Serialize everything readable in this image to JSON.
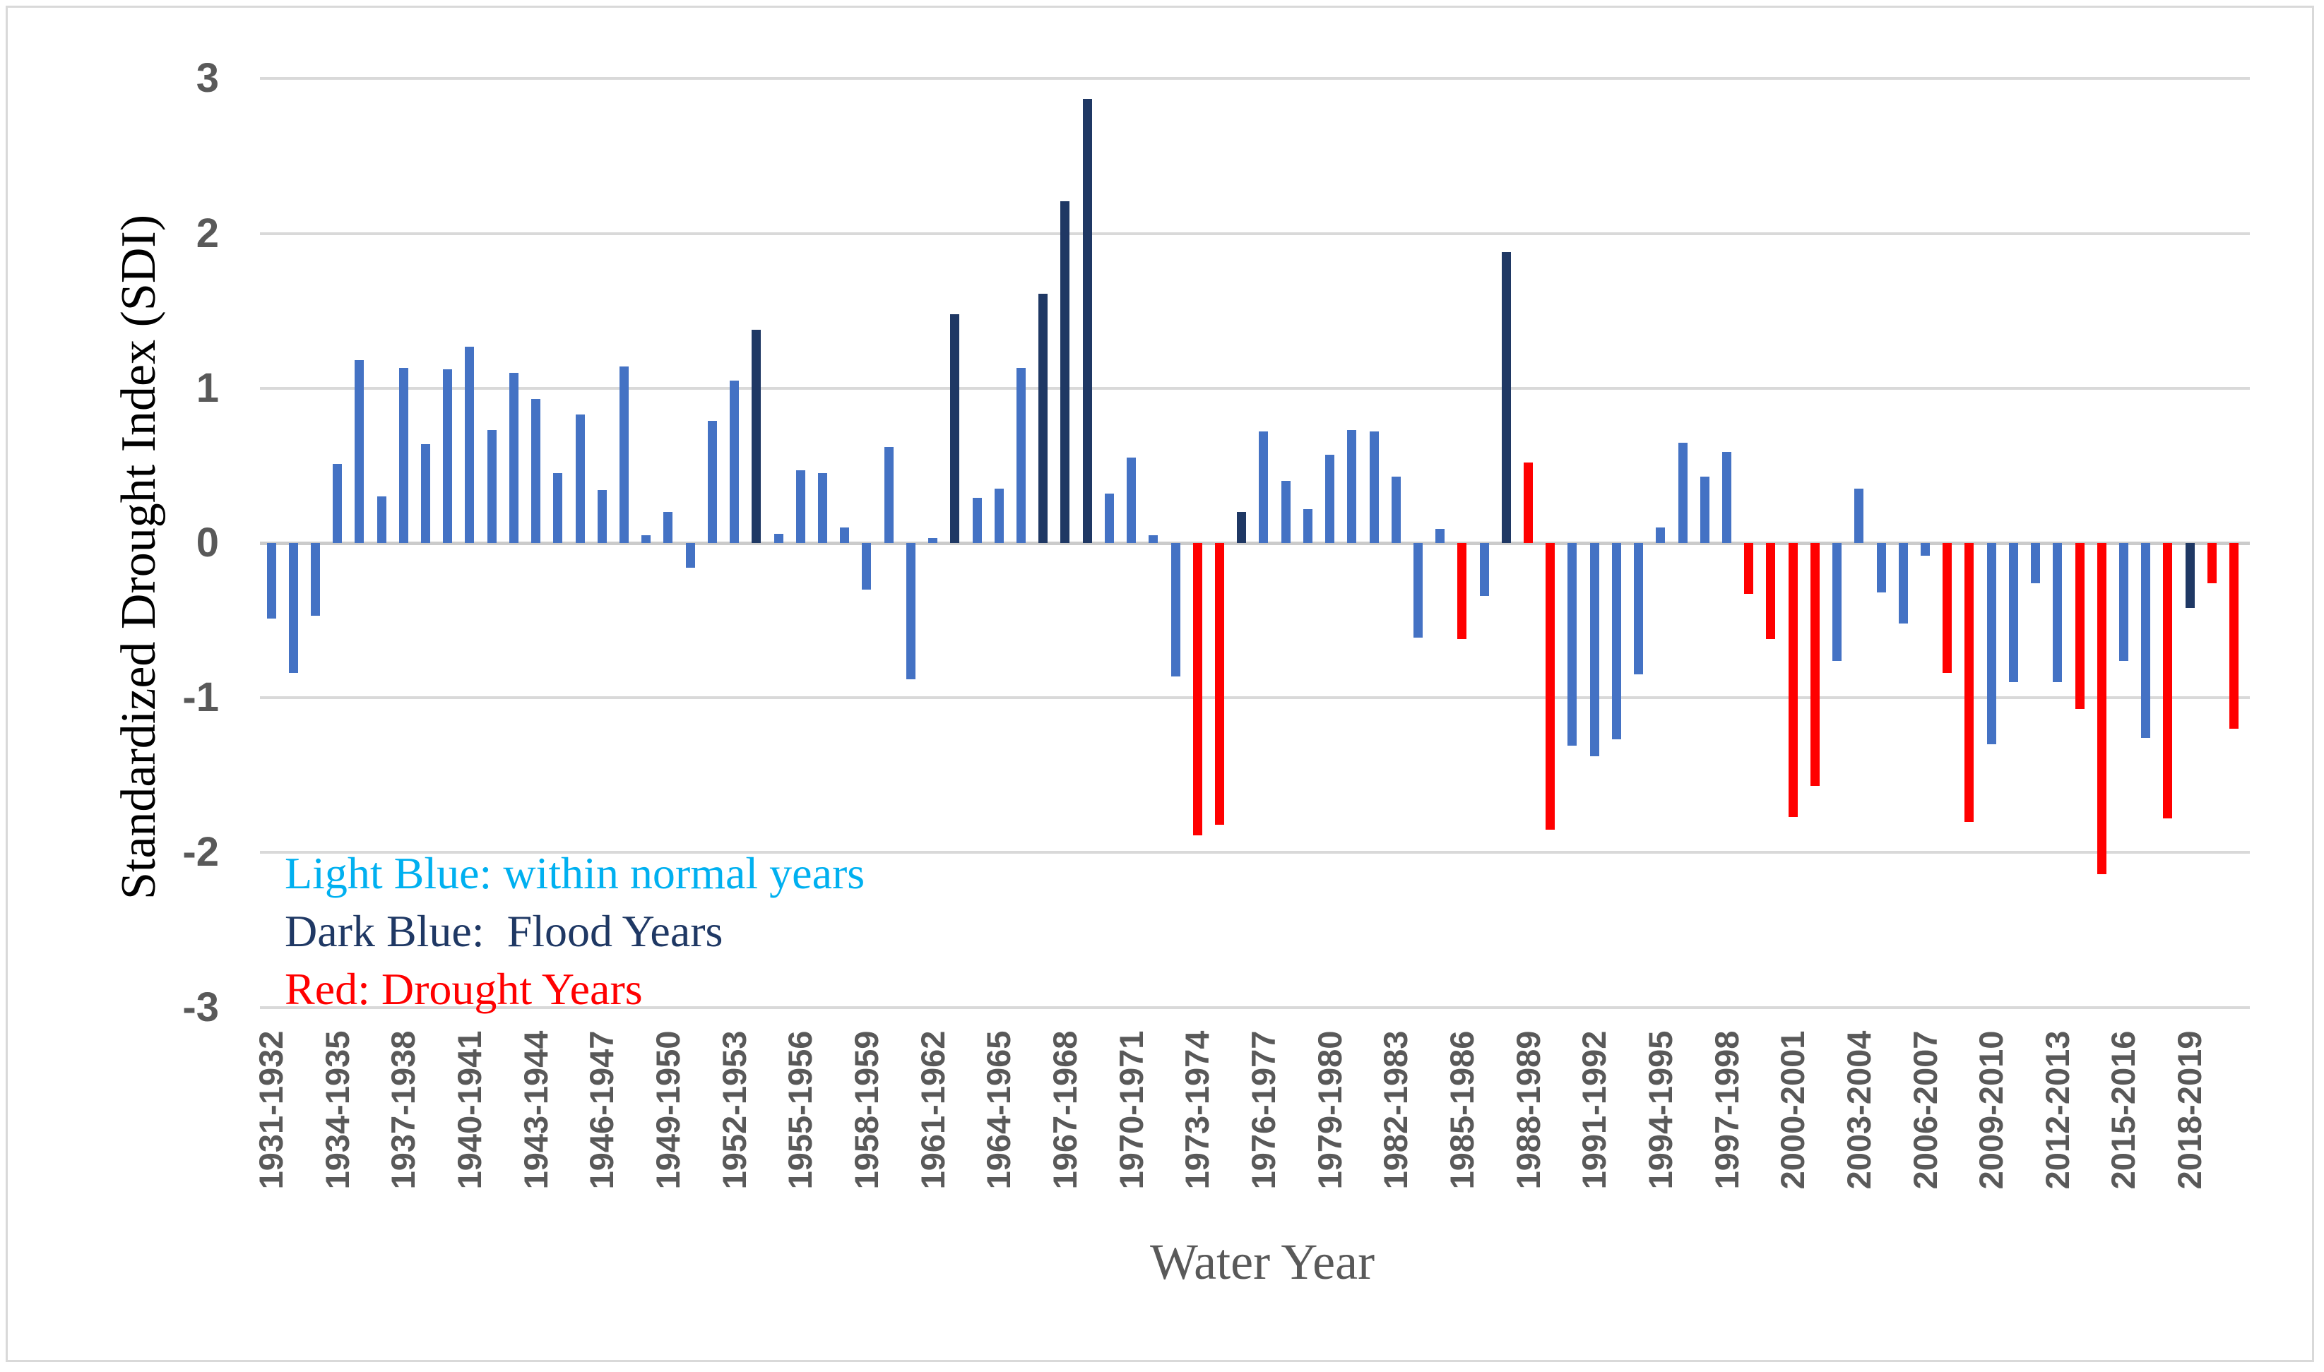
{
  "chart_data": {
    "type": "bar",
    "title": "",
    "xlabel": "Water Year",
    "ylabel": "Standardized Drought Index (SDI)",
    "ylim": [
      -3,
      3
    ],
    "ytick_interval": 1,
    "ytick_labels": [
      "3",
      "2",
      "1",
      "0",
      "-1",
      "-2",
      "-3"
    ],
    "x_tick_every": 3,
    "grid": "horizontal",
    "legend_position": "inside-bottom-left",
    "categories": [
      "1931-1932",
      "1932-1933",
      "1933-1934",
      "1934-1935",
      "1935-1936",
      "1936-1937",
      "1937-1938",
      "1938-1939",
      "1939-1940",
      "1940-1941",
      "1941-1942",
      "1942-1943",
      "1943-1944",
      "1944-1945",
      "1945-1946",
      "1946-1947",
      "1947-1948",
      "1948-1949",
      "1949-1950",
      "1950-1951",
      "1951-1952",
      "1952-1953",
      "1953-1954",
      "1954-1955",
      "1955-1956",
      "1956-1957",
      "1957-1958",
      "1958-1959",
      "1959-1960",
      "1960-1961",
      "1961-1962",
      "1962-1963",
      "1963-1964",
      "1964-1965",
      "1965-1966",
      "1966-1967",
      "1967-1968",
      "1968-1969",
      "1969-1970",
      "1970-1971",
      "1971-1972",
      "1972-1973",
      "1973-1974",
      "1974-1975",
      "1975-1976",
      "1976-1977",
      "1977-1978",
      "1978-1979",
      "1979-1980",
      "1980-1981",
      "1981-1982",
      "1982-1983",
      "1983-1984",
      "1984-1985",
      "1985-1986",
      "1986-1987",
      "1987-1988",
      "1988-1989",
      "1989-1990",
      "1990-1991",
      "1991-1992",
      "1992-1993",
      "1993-1994",
      "1994-1995",
      "1995-1996",
      "1996-1997",
      "1997-1998",
      "1998-1999",
      "1999-2000",
      "2000-2001",
      "2001-2002",
      "2002-2003",
      "2003-2004",
      "2004-2005",
      "2005-2006",
      "2006-2007",
      "2007-2008",
      "2008-2009",
      "2009-2010",
      "2010-2011",
      "2011-2012",
      "2012-2013",
      "2013-2014",
      "2014-2015",
      "2015-2016",
      "2016-2017",
      "2017-2018",
      "2018-2019",
      "2019-2020",
      "2020-2021"
    ],
    "values": [
      -0.49,
      -0.84,
      -0.47,
      0.51,
      1.18,
      0.3,
      1.13,
      0.64,
      1.12,
      1.27,
      0.73,
      1.1,
      0.93,
      0.45,
      0.83,
      0.34,
      1.14,
      0.05,
      0.2,
      -0.16,
      0.79,
      1.05,
      1.38,
      0.06,
      0.47,
      0.45,
      0.1,
      -0.3,
      0.62,
      -0.88,
      0.03,
      1.48,
      0.29,
      0.35,
      1.13,
      1.61,
      2.21,
      2.87,
      0.32,
      0.55,
      0.05,
      -0.86,
      -1.89,
      -1.82,
      0.2,
      0.72,
      0.4,
      0.22,
      0.57,
      0.73,
      0.72,
      0.43,
      -0.61,
      0.09,
      -0.62,
      -0.34,
      1.88,
      0.52,
      -1.85,
      -1.31,
      -1.38,
      -1.27,
      -0.85,
      0.1,
      0.65,
      0.43,
      0.59,
      -0.33,
      -0.62,
      -1.77,
      -1.57,
      -0.76,
      0.35,
      -0.32,
      -0.52,
      -0.08,
      -0.84,
      -1.8,
      -1.3,
      -0.9,
      -0.26,
      -0.9,
      -1.07,
      -2.14,
      -0.76,
      -1.26,
      -1.78,
      -0.42,
      -0.26,
      -1.2
    ],
    "classes": [
      "normal",
      "normal",
      "normal",
      "normal",
      "normal",
      "normal",
      "normal",
      "normal",
      "normal",
      "normal",
      "normal",
      "normal",
      "normal",
      "normal",
      "normal",
      "normal",
      "normal",
      "normal",
      "normal",
      "normal",
      "normal",
      "normal",
      "flood",
      "normal",
      "normal",
      "normal",
      "normal",
      "normal",
      "normal",
      "normal",
      "normal",
      "flood",
      "normal",
      "normal",
      "normal",
      "flood",
      "flood",
      "flood",
      "normal",
      "normal",
      "normal",
      "normal",
      "drought",
      "drought",
      "flood",
      "normal",
      "normal",
      "normal",
      "normal",
      "normal",
      "normal",
      "normal",
      "normal",
      "normal",
      "drought",
      "normal",
      "flood",
      "drought",
      "drought",
      "normal",
      "normal",
      "normal",
      "normal",
      "normal",
      "normal",
      "normal",
      "normal",
      "drought",
      "drought",
      "drought",
      "drought",
      "normal",
      "normal",
      "normal",
      "normal",
      "normal",
      "drought",
      "drought",
      "normal",
      "normal",
      "normal",
      "normal",
      "drought",
      "drought",
      "normal",
      "normal",
      "drought",
      "flood",
      "drought",
      "drought"
    ],
    "colors": {
      "normal": "#4472C4",
      "flood": "#1F3864",
      "drought": "#FF0000",
      "gridline": "#D9D9D9",
      "tick_label": "#595959",
      "axis_title": "#595959",
      "y_axis_title": "#000000"
    },
    "legend": [
      {
        "label": "Light Blue: within normal years",
        "color": "#00B0F0"
      },
      {
        "label": "Dark Blue:  Flood Years",
        "color": "#1F3864"
      },
      {
        "label": "Red: Drought Years",
        "color": "#FF0000"
      }
    ]
  }
}
